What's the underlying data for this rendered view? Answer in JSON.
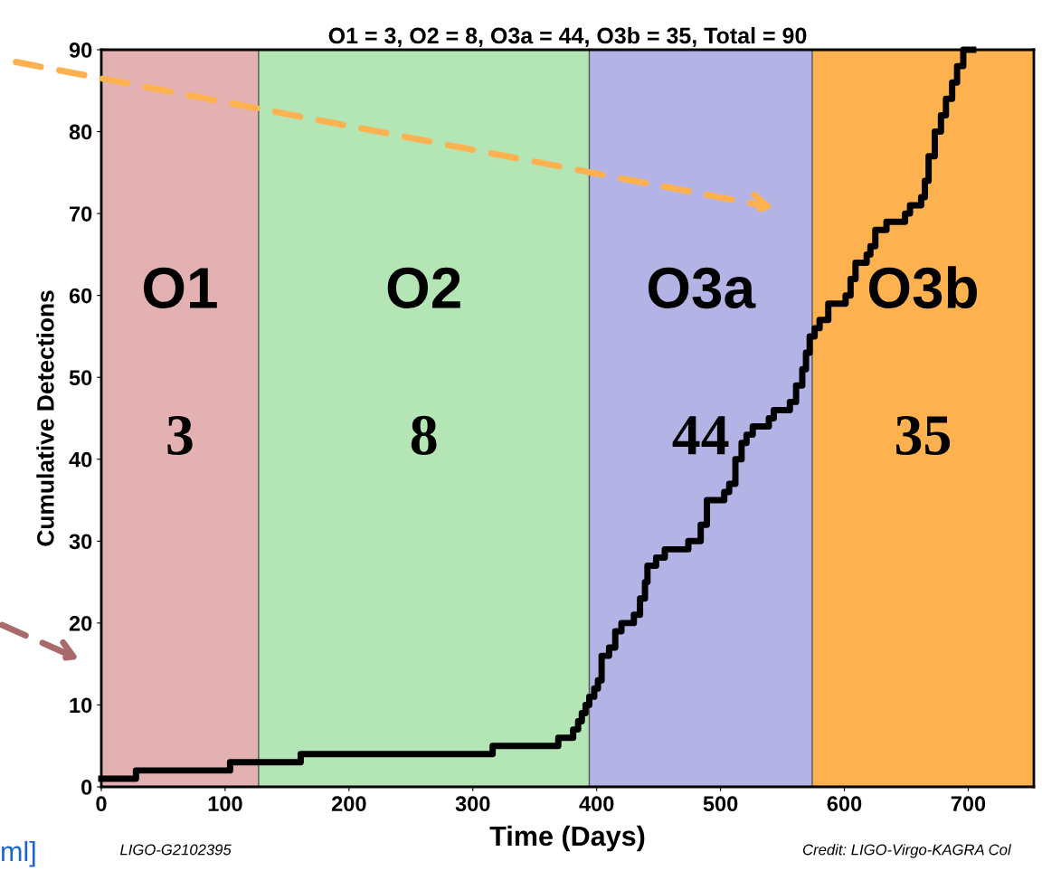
{
  "chart_data": {
    "type": "step",
    "title": "O1 = 3, O2 = 8, O3a = 44, O3b = 35, Total = 90",
    "xlabel": "Time (Days)",
    "ylabel": "Cumulative Detections",
    "x": [
      0,
      28,
      104,
      161,
      316,
      369,
      381,
      385,
      388,
      391,
      394,
      398,
      401,
      404,
      410,
      415,
      420,
      430,
      435,
      439,
      441,
      448,
      455,
      474,
      484,
      489,
      503,
      507,
      512,
      517,
      521,
      526,
      539,
      543,
      556,
      561,
      566,
      569,
      572,
      576,
      580,
      587,
      601,
      605,
      609,
      618,
      621,
      625,
      634,
      649,
      653,
      662,
      665,
      668,
      673,
      678,
      682,
      687,
      691,
      696,
      704
    ],
    "series": [
      {
        "color": "#000000",
        "values": [
          1,
          2,
          3,
          4,
          5,
          6,
          7,
          8,
          9,
          10,
          11,
          12,
          13,
          16,
          17,
          19,
          20,
          21,
          23,
          25,
          27,
          28,
          29,
          30,
          32,
          35,
          36,
          37,
          40,
          42,
          43,
          44,
          45,
          46,
          47,
          49,
          51,
          53,
          55,
          56,
          57,
          59,
          60,
          62,
          64,
          65,
          66,
          68,
          69,
          70,
          71,
          72,
          74,
          77,
          80,
          82,
          84,
          86,
          88,
          90,
          90
        ]
      }
    ],
    "xlim": [
      0,
      753
    ],
    "xticks": [
      0,
      100,
      200,
      300,
      400,
      500,
      600,
      700
    ],
    "ylim": [
      0,
      90
    ],
    "yticks": [
      0,
      10,
      20,
      30,
      40,
      50,
      60,
      70,
      80,
      90
    ],
    "grid": false,
    "line_style": "solid",
    "marker": "none",
    "bands": [
      {
        "axis": "x",
        "from": 0,
        "to": 127,
        "label": "O1",
        "color": "#e3b1b1"
      },
      {
        "axis": "x",
        "from": 127,
        "to": 394,
        "label": "O2",
        "color": "#b4e5b4"
      },
      {
        "axis": "x",
        "from": 394,
        "to": 574,
        "label": "O3a",
        "color": "#b3b3e5"
      },
      {
        "axis": "x",
        "from": 574,
        "to": 753,
        "label": "O3b",
        "color": "#fdb24f"
      }
    ],
    "annotations": [
      "3",
      "8",
      "44",
      "35",
      "LIGO-G2102395",
      "Credit: LIGO-Virgo-KAGRA Col",
      "ml]"
    ]
  }
}
